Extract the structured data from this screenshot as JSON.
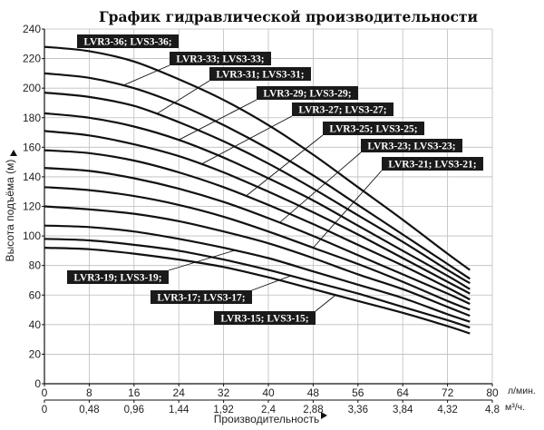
{
  "chart_data": {
    "type": "line",
    "title": "График гидравлической производительности",
    "ylabel": "Высота подъёма (м)",
    "xlabel": "Производительность",
    "x_unit": "л/мин.",
    "x2_unit": "м³/ч.",
    "xlim": [
      0,
      80
    ],
    "ylim": [
      0,
      240
    ],
    "xticks": [
      "0",
      "8",
      "16",
      "24",
      "32",
      "40",
      "48",
      "56",
      "64",
      "72",
      "80"
    ],
    "x2ticks": [
      "0",
      "0,48",
      "0,96",
      "1,44",
      "1,92",
      "2,4",
      "2,88",
      "3,36",
      "3,84",
      "4,32",
      "4,8"
    ],
    "yticks": [
      "0",
      "20",
      "40",
      "60",
      "80",
      "100",
      "120",
      "140",
      "160",
      "180",
      "200",
      "220",
      "240"
    ],
    "grid": true,
    "x": [
      0,
      8,
      16,
      24,
      32,
      40,
      48,
      56,
      64,
      72,
      76
    ],
    "series": [
      {
        "name": "LVR3-36; LVS3-36;",
        "values": [
          228,
          225,
          218,
          206,
          192,
          175,
          155,
          133,
          111,
          88,
          77
        ]
      },
      {
        "name": "LVR3-33; LVS3-33;",
        "values": [
          210,
          207,
          200,
          189,
          175,
          159,
          141,
          121,
          101,
          81,
          71
        ]
      },
      {
        "name": "LVR3-31; LVS3-31;",
        "values": [
          197,
          194,
          188,
          177,
          164,
          149,
          132,
          114,
          96,
          77,
          68
        ]
      },
      {
        "name": "LVR3-29; LVS3-29;",
        "values": [
          183,
          180,
          174,
          165,
          153,
          139,
          124,
          107,
          90,
          73,
          64
        ]
      },
      {
        "name": "LVR3-27; LVS3-27;",
        "values": [
          171,
          168,
          162,
          154,
          143,
          130,
          116,
          101,
          85,
          69,
          61
        ]
      },
      {
        "name": "LVR3-25; LVS3-25;",
        "values": [
          158,
          156,
          151,
          143,
          133,
          121,
          108,
          94,
          80,
          65,
          57
        ]
      },
      {
        "name": "LVR3-23; LVS3-23;",
        "values": [
          146,
          144,
          139,
          132,
          123,
          112,
          100,
          87,
          74,
          61,
          54
        ]
      },
      {
        "name": "LVR3-21; LVS3-21;",
        "values": [
          133,
          131,
          127,
          121,
          113,
          103,
          92,
          81,
          69,
          56,
          50
        ]
      },
      {
        "name": "",
        "values": [
          120,
          118,
          115,
          110,
          103,
          95,
          85,
          74,
          64,
          52,
          46
        ]
      },
      {
        "name": "LVR3-19; LVS3-19;",
        "values": [
          107,
          106,
          103,
          98,
          92,
          85,
          76,
          67,
          58,
          47,
          42
        ]
      },
      {
        "name": "LVR3-17; LVS3-17;",
        "values": [
          98,
          97,
          94,
          90,
          84,
          77,
          69,
          61,
          52,
          43,
          38
        ]
      },
      {
        "name": "LVR3-15; LVS3-15;",
        "values": [
          92,
          91,
          88,
          84,
          79,
          72,
          64,
          56,
          48,
          39,
          34
        ]
      }
    ],
    "labels": [
      {
        "text": "LVR3-36; LVS3-36;",
        "series": 0,
        "at_x": 3
      },
      {
        "text": "LVR3-33; LVS3-33;",
        "series": 1,
        "at_x": 14
      },
      {
        "text": "LVR3-31; LVS3-31;",
        "series": 2,
        "at_x": 20
      },
      {
        "text": "LVR3-29; LVS3-29;",
        "series": 3,
        "at_x": 24
      },
      {
        "text": "LVR3-27; LVS3-27;",
        "series": 4,
        "at_x": 28
      },
      {
        "text": "LVR3-25; LVS3-25;",
        "series": 5,
        "at_x": 36
      },
      {
        "text": "LVR3-23; LVS3-23;",
        "series": 6,
        "at_x": 42
      },
      {
        "text": "LVR3-21; LVS3-21;",
        "series": 7,
        "at_x": 48
      },
      {
        "text": "LVR3-19; LVS3-19;",
        "series": 9,
        "at_x": 34
      },
      {
        "text": "LVR3-17; LVS3-17;",
        "series": 10,
        "at_x": 44
      },
      {
        "text": "LVR3-15; LVS3-15;",
        "series": 11,
        "at_x": 52
      }
    ]
  }
}
